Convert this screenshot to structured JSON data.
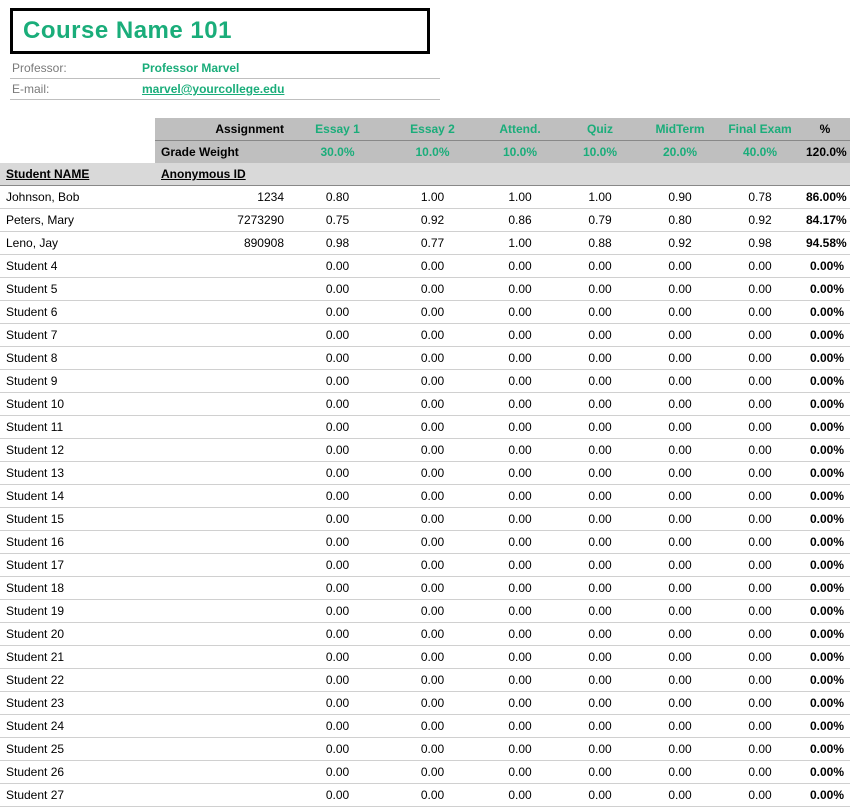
{
  "title": "Course Name 101",
  "meta": {
    "professor_label": "Professor:",
    "professor_value": "Professor Marvel",
    "email_label": "E-mail:",
    "email_value": "marvel@yourcollege.edu"
  },
  "header": {
    "assignment_label": "Assignment",
    "grade_weight_label": "Grade Weight",
    "student_name_label": "Student NAME",
    "anon_id_label": "Anonymous ID",
    "pct_label": "%",
    "total_weight": "120.0%"
  },
  "assignments": [
    {
      "name": "Essay 1",
      "weight": "30.0%"
    },
    {
      "name": "Essay 2",
      "weight": "10.0%"
    },
    {
      "name": "Attend.",
      "weight": "10.0%"
    },
    {
      "name": "Quiz",
      "weight": "10.0%"
    },
    {
      "name": "MidTerm",
      "weight": "20.0%"
    },
    {
      "name": "Final Exam",
      "weight": "40.0%"
    }
  ],
  "rows": [
    {
      "name": "Johnson, Bob",
      "id": "1234",
      "scores": [
        "0.80",
        "1.00",
        "1.00",
        "1.00",
        "0.90",
        "0.78"
      ],
      "pct": "86.00%"
    },
    {
      "name": "Peters, Mary",
      "id": "7273290",
      "scores": [
        "0.75",
        "0.92",
        "0.86",
        "0.79",
        "0.80",
        "0.92"
      ],
      "pct": "84.17%"
    },
    {
      "name": "Leno, Jay",
      "id": "890908",
      "scores": [
        "0.98",
        "0.77",
        "1.00",
        "0.88",
        "0.92",
        "0.98"
      ],
      "pct": "94.58%"
    },
    {
      "name": "Student 4",
      "id": "",
      "scores": [
        "0.00",
        "0.00",
        "0.00",
        "0.00",
        "0.00",
        "0.00"
      ],
      "pct": "0.00%"
    },
    {
      "name": "Student 5",
      "id": "",
      "scores": [
        "0.00",
        "0.00",
        "0.00",
        "0.00",
        "0.00",
        "0.00"
      ],
      "pct": "0.00%"
    },
    {
      "name": "Student 6",
      "id": "",
      "scores": [
        "0.00",
        "0.00",
        "0.00",
        "0.00",
        "0.00",
        "0.00"
      ],
      "pct": "0.00%"
    },
    {
      "name": "Student 7",
      "id": "",
      "scores": [
        "0.00",
        "0.00",
        "0.00",
        "0.00",
        "0.00",
        "0.00"
      ],
      "pct": "0.00%"
    },
    {
      "name": "Student 8",
      "id": "",
      "scores": [
        "0.00",
        "0.00",
        "0.00",
        "0.00",
        "0.00",
        "0.00"
      ],
      "pct": "0.00%"
    },
    {
      "name": "Student 9",
      "id": "",
      "scores": [
        "0.00",
        "0.00",
        "0.00",
        "0.00",
        "0.00",
        "0.00"
      ],
      "pct": "0.00%"
    },
    {
      "name": "Student 10",
      "id": "",
      "scores": [
        "0.00",
        "0.00",
        "0.00",
        "0.00",
        "0.00",
        "0.00"
      ],
      "pct": "0.00%"
    },
    {
      "name": "Student 11",
      "id": "",
      "scores": [
        "0.00",
        "0.00",
        "0.00",
        "0.00",
        "0.00",
        "0.00"
      ],
      "pct": "0.00%"
    },
    {
      "name": "Student 12",
      "id": "",
      "scores": [
        "0.00",
        "0.00",
        "0.00",
        "0.00",
        "0.00",
        "0.00"
      ],
      "pct": "0.00%"
    },
    {
      "name": "Student 13",
      "id": "",
      "scores": [
        "0.00",
        "0.00",
        "0.00",
        "0.00",
        "0.00",
        "0.00"
      ],
      "pct": "0.00%"
    },
    {
      "name": "Student 14",
      "id": "",
      "scores": [
        "0.00",
        "0.00",
        "0.00",
        "0.00",
        "0.00",
        "0.00"
      ],
      "pct": "0.00%"
    },
    {
      "name": "Student 15",
      "id": "",
      "scores": [
        "0.00",
        "0.00",
        "0.00",
        "0.00",
        "0.00",
        "0.00"
      ],
      "pct": "0.00%"
    },
    {
      "name": "Student 16",
      "id": "",
      "scores": [
        "0.00",
        "0.00",
        "0.00",
        "0.00",
        "0.00",
        "0.00"
      ],
      "pct": "0.00%"
    },
    {
      "name": "Student 17",
      "id": "",
      "scores": [
        "0.00",
        "0.00",
        "0.00",
        "0.00",
        "0.00",
        "0.00"
      ],
      "pct": "0.00%"
    },
    {
      "name": "Student 18",
      "id": "",
      "scores": [
        "0.00",
        "0.00",
        "0.00",
        "0.00",
        "0.00",
        "0.00"
      ],
      "pct": "0.00%"
    },
    {
      "name": "Student 19",
      "id": "",
      "scores": [
        "0.00",
        "0.00",
        "0.00",
        "0.00",
        "0.00",
        "0.00"
      ],
      "pct": "0.00%"
    },
    {
      "name": "Student 20",
      "id": "",
      "scores": [
        "0.00",
        "0.00",
        "0.00",
        "0.00",
        "0.00",
        "0.00"
      ],
      "pct": "0.00%"
    },
    {
      "name": "Student 21",
      "id": "",
      "scores": [
        "0.00",
        "0.00",
        "0.00",
        "0.00",
        "0.00",
        "0.00"
      ],
      "pct": "0.00%"
    },
    {
      "name": "Student 22",
      "id": "",
      "scores": [
        "0.00",
        "0.00",
        "0.00",
        "0.00",
        "0.00",
        "0.00"
      ],
      "pct": "0.00%"
    },
    {
      "name": "Student 23",
      "id": "",
      "scores": [
        "0.00",
        "0.00",
        "0.00",
        "0.00",
        "0.00",
        "0.00"
      ],
      "pct": "0.00%"
    },
    {
      "name": "Student 24",
      "id": "",
      "scores": [
        "0.00",
        "0.00",
        "0.00",
        "0.00",
        "0.00",
        "0.00"
      ],
      "pct": "0.00%"
    },
    {
      "name": "Student 25",
      "id": "",
      "scores": [
        "0.00",
        "0.00",
        "0.00",
        "0.00",
        "0.00",
        "0.00"
      ],
      "pct": "0.00%"
    },
    {
      "name": "Student 26",
      "id": "",
      "scores": [
        "0.00",
        "0.00",
        "0.00",
        "0.00",
        "0.00",
        "0.00"
      ],
      "pct": "0.00%"
    },
    {
      "name": "Student 27",
      "id": "",
      "scores": [
        "0.00",
        "0.00",
        "0.00",
        "0.00",
        "0.00",
        "0.00"
      ],
      "pct": "0.00%"
    }
  ],
  "colors": {
    "accent": "#1aad7a",
    "header_bg": "#bfbfbf",
    "subheader_bg": "#d9d9d9",
    "grid_line": "#d0d0d0",
    "meta_label": "#7a7a7a"
  }
}
